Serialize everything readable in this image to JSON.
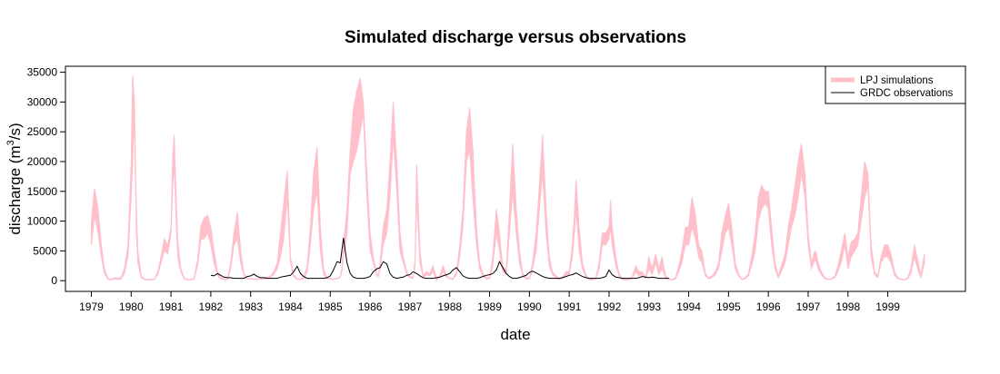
{
  "chart_data": {
    "type": "area",
    "title": "Simulated discharge versus observations",
    "xlabel": "date",
    "ylabel": "discharge (m",
    "ylabel_sup": "3",
    "ylabel_suffix": "/s)",
    "ylim": [
      -1800,
      36000
    ],
    "xlim_years": [
      1978.35,
      2000.95
    ],
    "y_ticks": [
      0,
      5000,
      10000,
      15000,
      20000,
      25000,
      30000,
      35000
    ],
    "x_ticks": [
      "1979",
      "1980",
      "1981",
      "1982",
      "1983",
      "1984",
      "1985",
      "1986",
      "1987",
      "1988",
      "1989",
      "1990",
      "1991",
      "1992",
      "1993",
      "1994",
      "1995",
      "1996",
      "1997",
      "1998",
      "1999"
    ],
    "legend": {
      "position": "top-right",
      "entries": [
        "LPJ simulations",
        "GRDC observations"
      ]
    },
    "colors": {
      "simulations": "#ffc0cb",
      "observations": "#000000",
      "axes": "#000000"
    },
    "series": [
      {
        "name": "LPJ simulations",
        "kind": "band",
        "x": [
          1979.0,
          1979.08,
          1979.17,
          1979.25,
          1979.33,
          1979.42,
          1979.5,
          1979.58,
          1979.67,
          1979.75,
          1979.83,
          1979.92,
          1980.0,
          1980.04,
          1980.08,
          1980.13,
          1980.17,
          1980.25,
          1980.33,
          1980.42,
          1980.5,
          1980.58,
          1980.67,
          1980.75,
          1980.83,
          1980.92,
          1981.0,
          1981.04,
          1981.08,
          1981.13,
          1981.17,
          1981.21,
          1981.25,
          1981.33,
          1981.42,
          1981.5,
          1981.58,
          1981.67,
          1981.75,
          1981.83,
          1981.92,
          1982.0,
          1982.08,
          1982.17,
          1982.25,
          1982.33,
          1982.42,
          1982.5,
          1982.58,
          1982.67,
          1982.75,
          1982.83,
          1982.92,
          1983.0,
          1983.08,
          1983.17,
          1983.25,
          1983.33,
          1983.42,
          1983.5,
          1983.58,
          1983.67,
          1983.75,
          1983.83,
          1983.92,
          1984.0,
          1984.08,
          1984.17,
          1984.25,
          1984.33,
          1984.42,
          1984.5,
          1984.58,
          1984.67,
          1984.75,
          1984.83,
          1984.92,
          1985.0,
          1985.08,
          1985.17,
          1985.21,
          1985.25,
          1985.29,
          1985.33,
          1985.42,
          1985.5,
          1985.58,
          1985.67,
          1985.75,
          1985.83,
          1985.92,
          1986.0,
          1986.08,
          1986.17,
          1986.21,
          1986.25,
          1986.33,
          1986.42,
          1986.5,
          1986.58,
          1986.67,
          1986.75,
          1986.83,
          1986.92,
          1987.0,
          1987.08,
          1987.13,
          1987.17,
          1987.25,
          1987.33,
          1987.42,
          1987.5,
          1987.58,
          1987.67,
          1987.75,
          1987.83,
          1987.92,
          1988.0,
          1988.08,
          1988.17,
          1988.25,
          1988.33,
          1988.42,
          1988.5,
          1988.58,
          1988.67,
          1988.75,
          1988.83,
          1988.92,
          1989.0,
          1989.08,
          1989.17,
          1989.25,
          1989.29,
          1989.33,
          1989.42,
          1989.5,
          1989.58,
          1989.67,
          1989.75,
          1989.83,
          1989.92,
          1990.0,
          1990.04,
          1990.08,
          1990.17,
          1990.25,
          1990.33,
          1990.42,
          1990.5,
          1990.58,
          1990.67,
          1990.75,
          1990.83,
          1990.92,
          1991.0,
          1991.08,
          1991.13,
          1991.17,
          1991.25,
          1991.33,
          1991.42,
          1991.5,
          1991.58,
          1991.67,
          1991.75,
          1991.83,
          1991.92,
          1992.0,
          1992.04,
          1992.08,
          1992.17,
          1992.25,
          1992.33,
          1992.42,
          1992.5,
          1992.58,
          1992.67,
          1992.75,
          1992.83,
          1992.92,
          1993.0,
          1993.08,
          1993.17,
          1993.25,
          1993.33,
          1993.42,
          1993.5,
          1993.58,
          1993.67,
          1993.75,
          1993.83,
          1993.92,
          1994.0,
          1994.08,
          1994.17,
          1994.25,
          1994.33,
          1994.42,
          1994.5,
          1994.58,
          1994.67,
          1994.75,
          1994.83,
          1994.92,
          1995.0,
          1995.08,
          1995.17,
          1995.25,
          1995.33,
          1995.42,
          1995.5,
          1995.58,
          1995.67,
          1995.75,
          1995.83,
          1995.92,
          1996.0,
          1996.08,
          1996.17,
          1996.25,
          1996.33,
          1996.42,
          1996.5,
          1996.58,
          1996.67,
          1996.75,
          1996.83,
          1996.92,
          1997.0,
          1997.08,
          1997.17,
          1997.21,
          1997.25,
          1997.33,
          1997.42,
          1997.5,
          1997.58,
          1997.67,
          1997.75,
          1997.83,
          1997.92,
          1998.0,
          1998.08,
          1998.17,
          1998.25,
          1998.33,
          1998.42,
          1998.5,
          1998.58,
          1998.67,
          1998.75,
          1998.83,
          1998.92,
          1999.0,
          1999.08,
          1999.17,
          1999.25,
          1999.33,
          1999.42,
          1999.5,
          1999.58,
          1999.67,
          1999.75,
          1999.83,
          1999.92
        ],
        "lower": [
          6000,
          11000,
          8000,
          4000,
          1200,
          200,
          100,
          300,
          200,
          300,
          1200,
          4000,
          14000,
          20000,
          28000,
          8000,
          3000,
          500,
          200,
          100,
          100,
          200,
          1000,
          3000,
          5000,
          4500,
          8000,
          15000,
          20000,
          10000,
          4000,
          2500,
          1500,
          300,
          100,
          100,
          300,
          2500,
          7000,
          7000,
          8000,
          6000,
          3000,
          900,
          300,
          200,
          200,
          2000,
          6000,
          7000,
          3000,
          900,
          300,
          300,
          200,
          200,
          300,
          300,
          400,
          600,
          1000,
          2000,
          4000,
          7000,
          14000,
          3000,
          700,
          200,
          200,
          300,
          1500,
          6000,
          12000,
          15000,
          5000,
          1000,
          300,
          300,
          200,
          300,
          400,
          600,
          1500,
          4000,
          8000,
          18000,
          20000,
          22000,
          25000,
          28000,
          14000,
          5000,
          3000,
          800,
          700,
          2000,
          6000,
          8000,
          14000,
          24000,
          15000,
          5000,
          3000,
          1000,
          500,
          400,
          2500,
          14000,
          3000,
          600,
          1000,
          800,
          1500,
          200,
          500,
          1500,
          600,
          300,
          200,
          1000,
          4000,
          9000,
          20000,
          22000,
          14000,
          6000,
          2000,
          800,
          300,
          300,
          2500,
          8000,
          5000,
          3000,
          1500,
          1000,
          8000,
          15000,
          8000,
          3000,
          800,
          300,
          300,
          1000,
          2000,
          5000,
          12000,
          18000,
          8000,
          2500,
          1000,
          500,
          200,
          400,
          1000,
          1000,
          4000,
          8000,
          12000,
          5000,
          2000,
          600,
          200,
          100,
          300,
          2000,
          6000,
          6000,
          7000,
          9000,
          6000,
          2500,
          800,
          200,
          100,
          200,
          400,
          1500,
          800,
          1000,
          300,
          2000,
          1000,
          3000,
          1000,
          2000,
          500,
          200,
          100,
          300,
          1500,
          3000,
          6000,
          6000,
          9000,
          7000,
          4000,
          3000,
          800,
          300,
          500,
          1000,
          2000,
          5000,
          8000,
          9000,
          6000,
          2000,
          800,
          200,
          300,
          800,
          2500,
          5000,
          10000,
          12000,
          13000,
          12000,
          6000,
          2000,
          500,
          1500,
          3000,
          6000,
          9000,
          11000,
          14000,
          18000,
          14000,
          6000,
          2000,
          3500,
          3000,
          2000,
          1000,
          300,
          200,
          200,
          500,
          1500,
          3000,
          6000,
          2000,
          4000,
          5000,
          6000,
          10000,
          14000,
          16000,
          4000,
          1000,
          500,
          3000,
          4000,
          4000,
          3000,
          900,
          300,
          200,
          100,
          300,
          1200,
          4000,
          2000,
          500,
          3000
        ],
        "upper": [
          10000,
          15500,
          12000,
          6000,
          2000,
          400,
          200,
          500,
          400,
          600,
          2000,
          6000,
          20000,
          34500,
          30000,
          12000,
          5000,
          900,
          300,
          200,
          200,
          300,
          1500,
          4000,
          7000,
          6000,
          9000,
          20000,
          24500,
          14000,
          7000,
          4000,
          2000,
          500,
          200,
          200,
          500,
          3500,
          9000,
          10500,
          11000,
          9000,
          5000,
          1500,
          500,
          300,
          300,
          3000,
          8000,
          11500,
          5000,
          1200,
          400,
          400,
          300,
          300,
          400,
          500,
          600,
          800,
          1500,
          3000,
          8000,
          13000,
          18500,
          4000,
          1000,
          300,
          300,
          500,
          2500,
          9000,
          18000,
          22500,
          9000,
          2000,
          500,
          400,
          300,
          400,
          500,
          800,
          2000,
          6000,
          12000,
          22000,
          29000,
          32000,
          34000,
          30000,
          18000,
          8000,
          4000,
          1200,
          900,
          3000,
          9000,
          12000,
          20000,
          30000,
          20000,
          8000,
          4000,
          1500,
          700,
          600,
          3500,
          19500,
          5000,
          900,
          1500,
          1200,
          2500,
          400,
          800,
          2500,
          900,
          400,
          300,
          1500,
          6000,
          12000,
          25000,
          29000,
          22000,
          9000,
          3000,
          1200,
          500,
          500,
          4000,
          12000,
          8000,
          5000,
          2500,
          1800,
          12000,
          23000,
          12000,
          5000,
          1200,
          500,
          500,
          1500,
          3000,
          8000,
          16000,
          24500,
          12000,
          4000,
          1500,
          800,
          300,
          600,
          1500,
          1500,
          6000,
          11000,
          17000,
          9000,
          3000,
          1000,
          300,
          200,
          500,
          3000,
          8000,
          8000,
          9000,
          13500,
          9000,
          4000,
          1200,
          400,
          200,
          400,
          600,
          2500,
          1500,
          1500,
          500,
          4000,
          2000,
          4500,
          2000,
          4000,
          800,
          400,
          200,
          500,
          2500,
          5000,
          9000,
          9000,
          14000,
          11000,
          6000,
          5000,
          1200,
          500,
          800,
          1500,
          3000,
          8000,
          11000,
          13000,
          9000,
          3000,
          1200,
          300,
          500,
          1200,
          4000,
          8000,
          14000,
          16000,
          15000,
          15000,
          9000,
          3000,
          800,
          2500,
          4500,
          9000,
          12000,
          16000,
          20000,
          23000,
          18000,
          8000,
          3000,
          5000,
          4500,
          3000,
          1500,
          500,
          300,
          300,
          800,
          2500,
          5000,
          8000,
          4000,
          6500,
          7000,
          8000,
          14000,
          20000,
          18000,
          6000,
          1500,
          800,
          4000,
          6000,
          6000,
          4500,
          1500,
          500,
          300,
          200,
          500,
          2000,
          6000,
          3500,
          900,
          4500
        ]
      },
      {
        "name": "GRDC observations",
        "kind": "line",
        "x": [
          1982.0,
          1982.08,
          1982.17,
          1982.25,
          1982.33,
          1982.42,
          1982.5,
          1982.58,
          1982.67,
          1982.75,
          1982.83,
          1982.92,
          1983.0,
          1983.08,
          1983.17,
          1983.25,
          1983.33,
          1983.42,
          1983.5,
          1983.58,
          1983.67,
          1983.75,
          1983.83,
          1983.92,
          1984.0,
          1984.08,
          1984.17,
          1984.25,
          1984.33,
          1984.42,
          1984.5,
          1984.58,
          1984.67,
          1984.75,
          1984.83,
          1984.92,
          1985.0,
          1985.08,
          1985.17,
          1985.25,
          1985.29,
          1985.33,
          1985.42,
          1985.5,
          1985.58,
          1985.67,
          1985.75,
          1985.83,
          1985.92,
          1986.0,
          1986.08,
          1986.17,
          1986.25,
          1986.33,
          1986.42,
          1986.5,
          1986.58,
          1986.67,
          1986.75,
          1986.83,
          1986.92,
          1987.0,
          1987.08,
          1987.17,
          1987.25,
          1987.33,
          1987.42,
          1987.5,
          1987.58,
          1987.67,
          1987.75,
          1987.83,
          1987.92,
          1988.0,
          1988.08,
          1988.17,
          1988.25,
          1988.33,
          1988.42,
          1988.5,
          1988.58,
          1988.67,
          1988.75,
          1988.83,
          1988.92,
          1989.0,
          1989.08,
          1989.17,
          1989.25,
          1989.33,
          1989.42,
          1989.5,
          1989.58,
          1989.67,
          1989.75,
          1989.83,
          1989.92,
          1990.0,
          1990.08,
          1990.17,
          1990.25,
          1990.33,
          1990.42,
          1990.5,
          1990.58,
          1990.67,
          1990.75,
          1990.83,
          1990.92,
          1991.0,
          1991.08,
          1991.17,
          1991.25,
          1991.33,
          1991.42,
          1991.5,
          1991.58,
          1991.67,
          1991.75,
          1991.83,
          1991.92,
          1992.0,
          1992.08,
          1992.17,
          1992.25,
          1992.33,
          1992.42,
          1992.5,
          1992.58,
          1992.67,
          1992.75,
          1992.83,
          1992.92,
          1993.0,
          1993.08,
          1993.17,
          1993.25,
          1993.33,
          1993.42,
          1993.5
        ],
        "values": [
          900,
          800,
          1200,
          900,
          600,
          500,
          500,
          400,
          400,
          400,
          400,
          700,
          800,
          1100,
          700,
          500,
          500,
          400,
          400,
          400,
          400,
          600,
          700,
          800,
          900,
          1500,
          2400,
          1200,
          700,
          400,
          400,
          400,
          400,
          400,
          400,
          500,
          800,
          1800,
          3200,
          3000,
          5000,
          7200,
          3000,
          1200,
          600,
          400,
          400,
          400,
          500,
          700,
          1500,
          2000,
          2200,
          3200,
          2800,
          1200,
          600,
          400,
          500,
          600,
          900,
          1000,
          1500,
          1200,
          800,
          500,
          400,
          400,
          400,
          500,
          600,
          800,
          1000,
          1200,
          1800,
          2200,
          1500,
          800,
          500,
          400,
          400,
          400,
          500,
          700,
          900,
          1000,
          1200,
          1800,
          3200,
          2200,
          1200,
          700,
          400,
          400,
          500,
          700,
          900,
          1400,
          1600,
          1300,
          1000,
          700,
          500,
          400,
          400,
          400,
          400,
          500,
          700,
          900,
          1000,
          1300,
          1000,
          700,
          500,
          400,
          400,
          400,
          400,
          500,
          700,
          1800,
          1000,
          600,
          500,
          400,
          400,
          400,
          400,
          400,
          500,
          700,
          600,
          500,
          600,
          500,
          400,
          400,
          400,
          400
        ]
      }
    ]
  }
}
